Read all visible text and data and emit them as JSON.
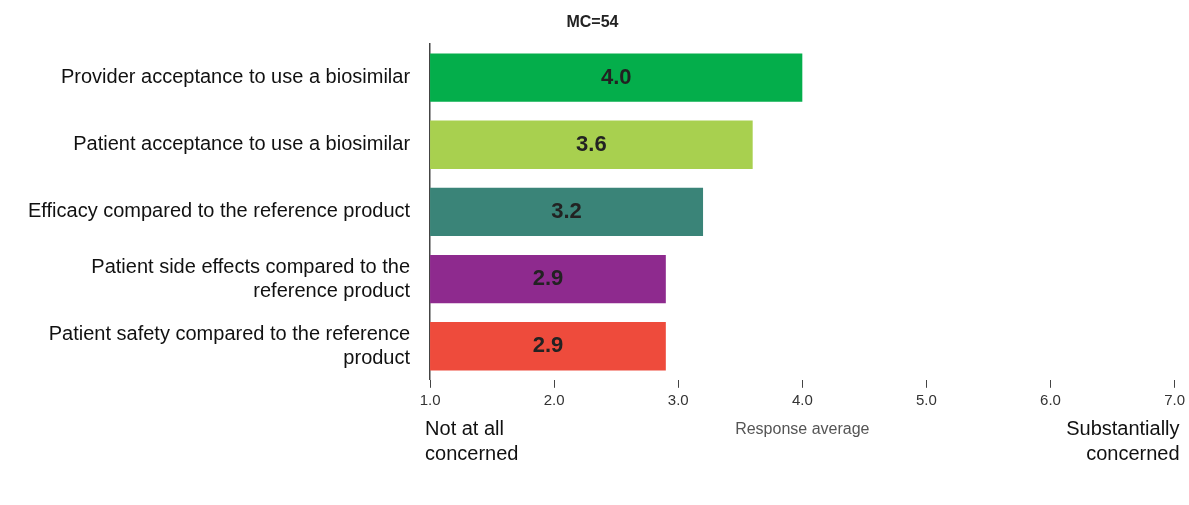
{
  "chart_data": {
    "type": "bar",
    "orientation": "horizontal",
    "title": "MC=54",
    "xlabel": "Response average",
    "categories": [
      "Provider acceptance to use a biosimilar",
      "Patient acceptance to use a biosimilar",
      "Efficacy compared to the reference product",
      "Patient side effects compared to the reference product",
      "Patient safety compared to the reference product"
    ],
    "values": [
      4.0,
      3.6,
      3.2,
      2.9,
      2.9
    ],
    "colors": [
      "#04ae4b",
      "#a8d04f",
      "#3a8478",
      "#8e2a8e",
      "#ee4b3c"
    ],
    "xlim": [
      1,
      7
    ],
    "xticks": [
      {
        "value": 1,
        "label": "1.0"
      },
      {
        "value": 2,
        "label": "2.0"
      },
      {
        "value": 3,
        "label": "3.0"
      },
      {
        "value": 4,
        "label": "4.0"
      },
      {
        "value": 5,
        "label": "5.0"
      },
      {
        "value": 6,
        "label": "6.0"
      },
      {
        "value": 7,
        "label": "7.0"
      }
    ],
    "value_labels": [
      "4.0",
      "3.6",
      "3.2",
      "2.9",
      "2.9"
    ],
    "grid": false,
    "legend": false,
    "annotations": [
      "Not at all concerned",
      "Substantially concerned"
    ]
  }
}
